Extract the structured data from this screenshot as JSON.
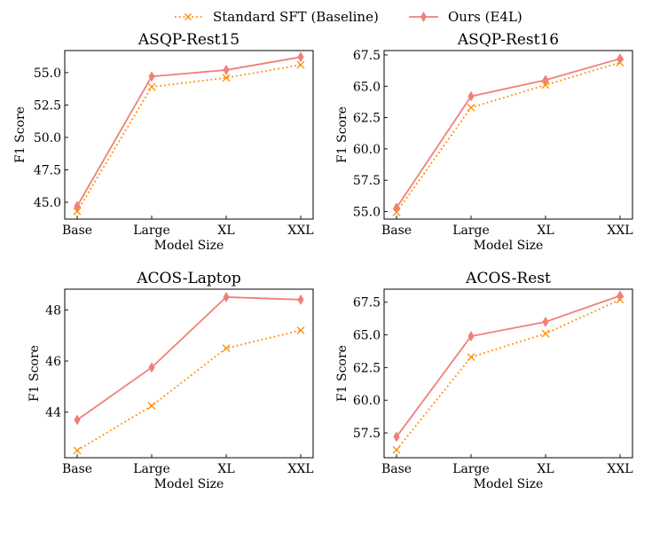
{
  "legend": {
    "placement": "top-center",
    "entries": [
      {
        "label": "Standard SFT (Baseline)",
        "color": "#ff8c00",
        "marker": "x",
        "linestyle": "dotted"
      },
      {
        "label": "Ours (E4L)",
        "color": "#f08078",
        "marker": "thin-diamond",
        "linestyle": "solid"
      }
    ]
  },
  "chart_data": [
    {
      "type": "line",
      "title": "ASQP-Rest15",
      "xlabel": "Model Size",
      "ylabel": "F1 Score",
      "categories": [
        "Base",
        "Large",
        "XL",
        "XXL"
      ],
      "ylim": [
        43.7,
        56.7
      ],
      "yticks": [
        45.0,
        47.5,
        50.0,
        52.5,
        55.0
      ],
      "ytick_labels": [
        "45.0",
        "47.5",
        "50.0",
        "52.5",
        "55.0"
      ],
      "grid": false,
      "series": [
        {
          "name": "Standard SFT (Baseline)",
          "values": [
            44.3,
            53.9,
            54.6,
            55.6
          ]
        },
        {
          "name": "Ours (E4L)",
          "values": [
            44.7,
            54.7,
            55.2,
            56.2
          ]
        }
      ]
    },
    {
      "type": "line",
      "title": "ASQP-Rest16",
      "xlabel": "Model Size",
      "ylabel": "F1 Score",
      "categories": [
        "Base",
        "Large",
        "XL",
        "XXL"
      ],
      "ylim": [
        54.4,
        67.85
      ],
      "yticks": [
        55.0,
        57.5,
        60.0,
        62.5,
        65.0,
        67.5
      ],
      "ytick_labels": [
        "55.0",
        "57.5",
        "60.0",
        "62.5",
        "65.0",
        "67.5"
      ],
      "grid": false,
      "series": [
        {
          "name": "Standard SFT (Baseline)",
          "values": [
            54.95,
            63.3,
            65.1,
            66.9
          ]
        },
        {
          "name": "Ours (E4L)",
          "values": [
            55.3,
            64.2,
            65.5,
            67.2
          ]
        }
      ]
    },
    {
      "type": "line",
      "title": "ACOS-Laptop",
      "xlabel": "Model Size",
      "ylabel": "F1 Score",
      "categories": [
        "Base",
        "Large",
        "XL",
        "XXL"
      ],
      "ylim": [
        42.22,
        48.81
      ],
      "yticks": [
        44,
        46,
        48
      ],
      "ytick_labels": [
        "44",
        "46",
        "48"
      ],
      "grid": false,
      "series": [
        {
          "name": "Standard SFT (Baseline)",
          "values": [
            42.5,
            44.25,
            46.5,
            47.2
          ]
        },
        {
          "name": "Ours (E4L)",
          "values": [
            43.7,
            45.75,
            48.5,
            48.4
          ]
        }
      ]
    },
    {
      "type": "line",
      "title": "ACOS-Rest",
      "xlabel": "Model Size",
      "ylabel": "F1 Score",
      "categories": [
        "Base",
        "Large",
        "XL",
        "XXL"
      ],
      "ylim": [
        55.6,
        68.5
      ],
      "yticks": [
        57.5,
        60.0,
        62.5,
        65.0,
        67.5
      ],
      "ytick_labels": [
        "57.5",
        "60.0",
        "62.5",
        "65.0",
        "67.5"
      ],
      "grid": false,
      "series": [
        {
          "name": "Standard SFT (Baseline)",
          "values": [
            56.2,
            63.3,
            65.1,
            67.7
          ]
        },
        {
          "name": "Ours (E4L)",
          "values": [
            57.2,
            64.9,
            66.0,
            68.0
          ]
        }
      ]
    }
  ]
}
